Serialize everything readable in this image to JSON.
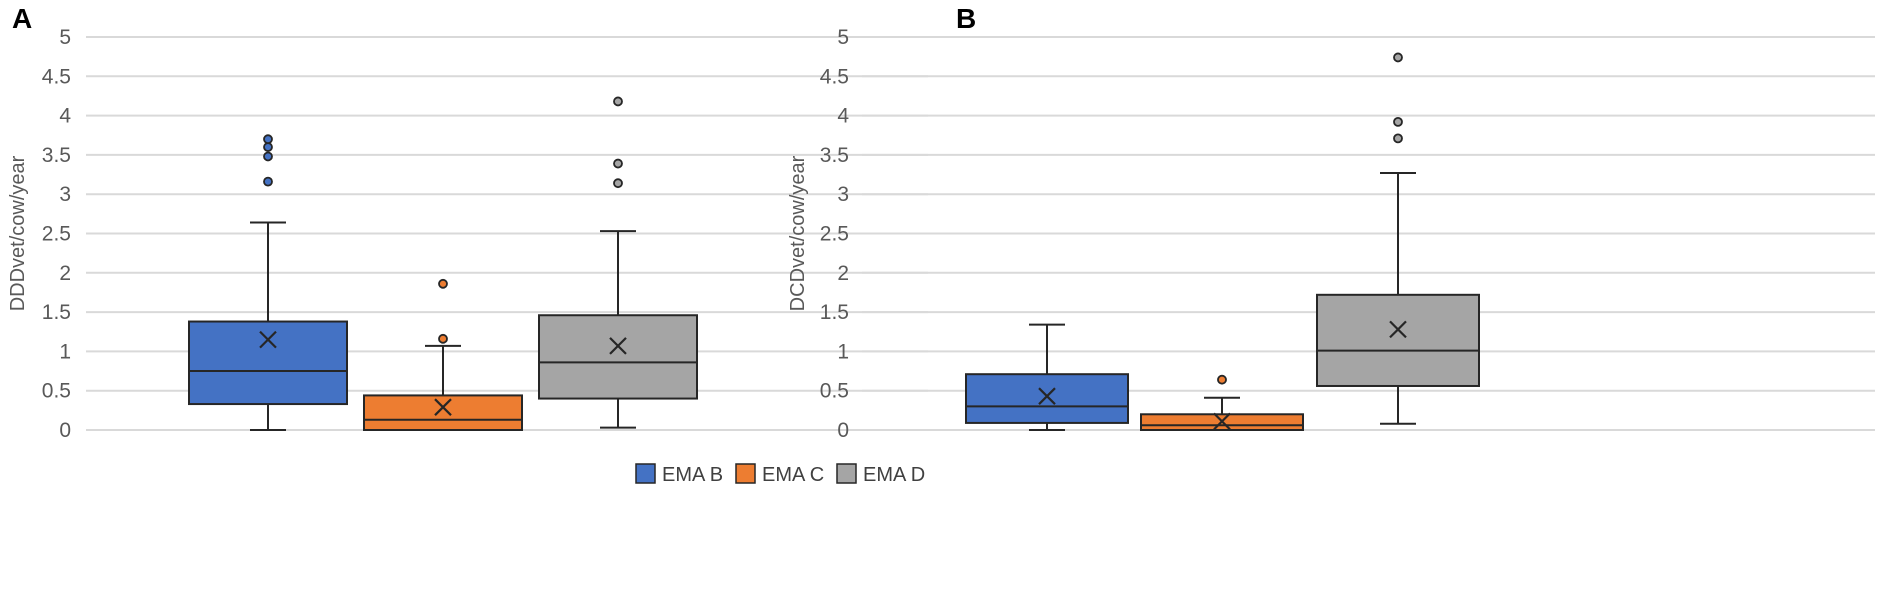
{
  "chart_data": [
    {
      "type": "boxplot",
      "panel": "A",
      "ylabel": "DDDvet/cow/year",
      "ylim": [
        0,
        5
      ],
      "yticks": [
        "0",
        "0.5",
        "1",
        "1.5",
        "2",
        "2.5",
        "3",
        "3.5",
        "4",
        "4.5",
        "5"
      ],
      "grid": true,
      "series": [
        {
          "name": "EMA B",
          "color": "#4472c4",
          "min": 0,
          "q1": 0.33,
          "median": 0.75,
          "q3": 1.38,
          "max": 2.64,
          "mean": 1.15,
          "outliers": [
            3.16,
            3.48,
            3.6,
            3.7
          ]
        },
        {
          "name": "EMA C",
          "color": "#ed7d31",
          "min": 0,
          "q1": 0,
          "median": 0.13,
          "q3": 0.44,
          "max": 1.07,
          "mean": 0.29,
          "outliers": [
            1.16,
            1.86
          ]
        },
        {
          "name": "EMA D",
          "color": "#a5a5a5",
          "min": 0.03,
          "q1": 0.4,
          "median": 0.86,
          "q3": 1.46,
          "max": 2.53,
          "mean": 1.07,
          "outliers": [
            3.14,
            3.39,
            4.18
          ]
        }
      ]
    },
    {
      "type": "boxplot",
      "panel": "B",
      "ylabel": "DCDvet/cow/year",
      "ylim": [
        0,
        5
      ],
      "yticks": [
        "0",
        "0.5",
        "1",
        "1.5",
        "2",
        "2.5",
        "3",
        "3.5",
        "4",
        "4.5",
        "5"
      ],
      "grid": true,
      "series": [
        {
          "name": "EMA B",
          "color": "#4472c4",
          "min": 0,
          "q1": 0.09,
          "median": 0.3,
          "q3": 0.71,
          "max": 1.34,
          "mean": 0.43,
          "outliers": []
        },
        {
          "name": "EMA C",
          "color": "#ed7d31",
          "min": 0,
          "q1": 0,
          "median": 0.06,
          "q3": 0.2,
          "max": 0.41,
          "mean": 0.11,
          "outliers": [
            0.64
          ]
        },
        {
          "name": "EMA D",
          "color": "#a5a5a5",
          "min": 0.08,
          "q1": 0.56,
          "median": 1.01,
          "q3": 1.72,
          "max": 3.27,
          "mean": 1.28,
          "outliers": [
            3.71,
            3.92,
            4.74
          ]
        }
      ]
    }
  ],
  "legend": {
    "position": "bottom-center",
    "items": [
      {
        "label": "EMA B",
        "color": "#4472c4"
      },
      {
        "label": "EMA C",
        "color": "#ed7d31"
      },
      {
        "label": "EMA D",
        "color": "#a5a5a5"
      }
    ]
  }
}
